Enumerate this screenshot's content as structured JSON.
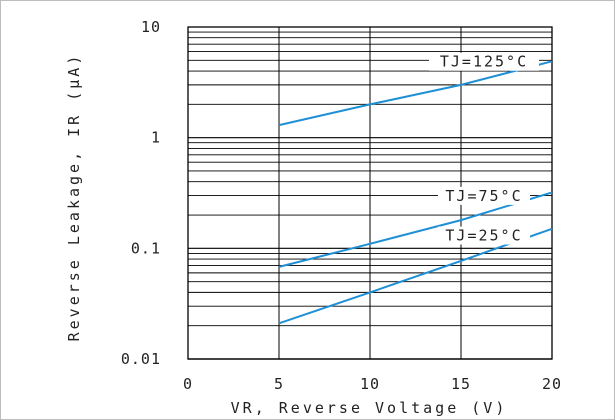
{
  "chart_data": {
    "type": "line",
    "title": "",
    "xlabel": "VR, Reverse Voltage (V)",
    "ylabel": "Reverse Leakage, IR (μA)",
    "xlim": [
      0,
      20
    ],
    "ylim": [
      0.01,
      10
    ],
    "yscale": "log",
    "grid": true,
    "x_ticks": [
      "0",
      "5",
      "10",
      "15",
      "20"
    ],
    "y_ticks": [
      "0.01",
      "0.1",
      "1",
      "10"
    ],
    "series": [
      {
        "name": "TJ=125°C",
        "x": [
          5,
          10,
          15,
          20
        ],
        "y": [
          1.3,
          2.0,
          3.0,
          4.9
        ],
        "color": "#1f8fd6"
      },
      {
        "name": "TJ=75°C",
        "x": [
          5,
          10,
          15,
          20
        ],
        "y": [
          0.068,
          0.11,
          0.18,
          0.32
        ],
        "color": "#1f8fd6"
      },
      {
        "name": "TJ=25°C",
        "x": [
          5,
          10,
          15,
          20
        ],
        "y": [
          0.021,
          0.04,
          0.077,
          0.15
        ],
        "color": "#1f8fd6"
      }
    ]
  }
}
